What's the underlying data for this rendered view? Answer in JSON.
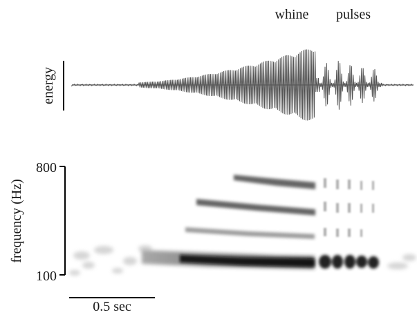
{
  "labels": {
    "whine": "whine",
    "pulses": "pulses",
    "energy_axis": "energy",
    "frequency_axis": "frequency (Hz)",
    "freq_max": "800",
    "freq_min": "100",
    "time_scale": "0.5 sec"
  },
  "colors": {
    "waveform": "#555555",
    "waveform_baseline": "#666666",
    "spectrogram_dark": "#111111",
    "axis": "#000000"
  },
  "frequency_range_hz": [
    100,
    800
  ],
  "scale_bar_seconds": 0.5
}
